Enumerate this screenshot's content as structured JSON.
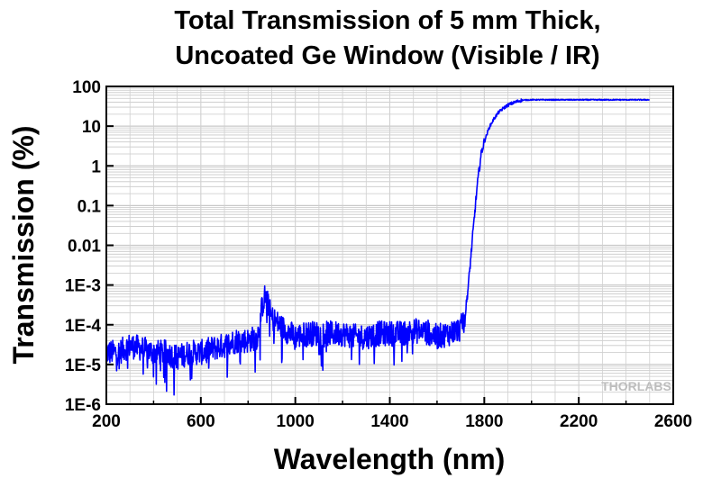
{
  "chart_data": {
    "type": "line",
    "title_lines": [
      "Total Transmission of 5 mm Thick,",
      "Uncoated Ge Window (Visible / IR)"
    ],
    "xlabel": "Wavelength (nm)",
    "ylabel": "Transmission (%)",
    "xlim": [
      200,
      2600
    ],
    "ylim": [
      1e-06,
      100
    ],
    "yscale": "log",
    "grid": true,
    "x_ticks": [
      200,
      600,
      1000,
      1400,
      1800,
      2200,
      2600
    ],
    "x_tick_labels": [
      "200",
      "600",
      "1000",
      "1400",
      "1800",
      "2200",
      "2600"
    ],
    "y_ticks": [
      100,
      10,
      1,
      0.1,
      0.01,
      0.001,
      0.0001,
      1e-05,
      1e-06
    ],
    "y_tick_labels": [
      "100",
      "10",
      "1",
      "0.1",
      "0.01",
      "1E-3",
      "1E-4",
      "1E-5",
      "1E-6"
    ],
    "series": [
      {
        "color": "#0000ff",
        "x": [
          200,
          250,
          300,
          350,
          400,
          450,
          500,
          550,
          600,
          650,
          700,
          750,
          800,
          840,
          860,
          870,
          880,
          900,
          950,
          1000,
          1050,
          1100,
          1150,
          1200,
          1250,
          1300,
          1350,
          1400,
          1450,
          1500,
          1550,
          1600,
          1650,
          1700,
          1720,
          1730,
          1740,
          1750,
          1760,
          1770,
          1780,
          1790,
          1800,
          1820,
          1840,
          1860,
          1880,
          1900,
          1920,
          1940,
          1960,
          2000,
          2100,
          2200,
          2300,
          2400,
          2500
        ],
        "y": [
          2e-05,
          2e-05,
          3e-05,
          2.5e-05,
          2e-05,
          2e-05,
          1.5e-05,
          2e-05,
          2e-05,
          2.5e-05,
          3e-05,
          4e-05,
          4e-05,
          5e-05,
          0.0003,
          0.0005,
          0.0004,
          0.00015,
          8e-05,
          5e-05,
          6e-05,
          6e-05,
          6e-05,
          6e-05,
          5e-05,
          5e-05,
          6e-05,
          6e-05,
          6e-05,
          7e-05,
          7e-05,
          5e-05,
          6e-05,
          8e-05,
          0.0002,
          0.0007,
          0.003,
          0.015,
          0.07,
          0.3,
          1,
          2.5,
          4,
          9,
          15,
          22,
          28,
          34,
          38,
          42,
          45,
          46,
          46,
          46,
          46,
          46,
          46
        ]
      }
    ]
  },
  "watermark": "THORLABS"
}
